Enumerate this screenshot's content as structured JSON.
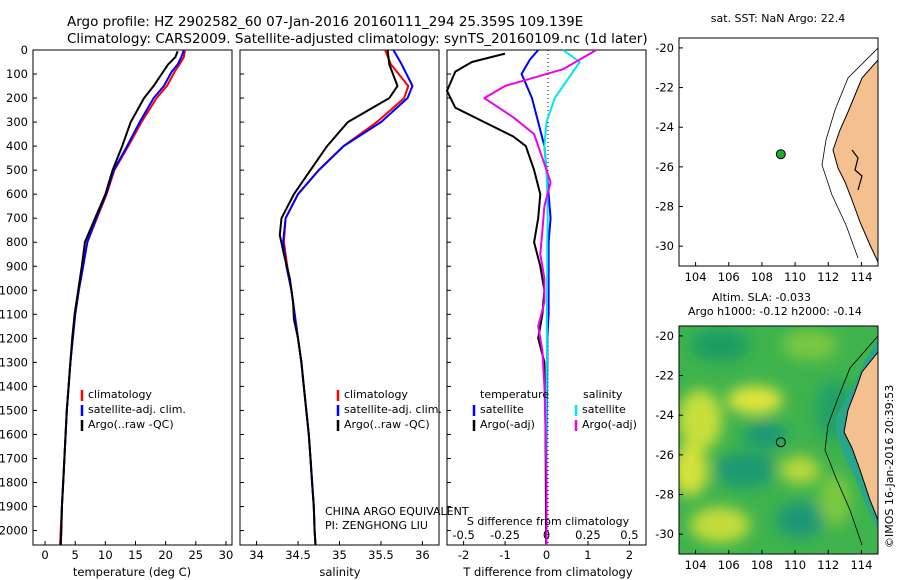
{
  "header": {
    "line1": "Argo profile: HZ 2902582_60 07-Jan-2016 20160111_294 25.359S 109.139E",
    "line2": "Climatology: CARS2009. Satellite-adjusted climatology: synTS_20160109.nc (1d later)"
  },
  "colors": {
    "climatology": "#ff0000",
    "satellite": "#0000ff",
    "argo": "#000000",
    "salinity_satellite": "#00e5ee",
    "salinity_argo": "#ee00ee",
    "land": "#f5c08f",
    "float_marker": "#22aa33"
  },
  "side_label": "©IMOS 16-Jan-2016 20:39:53",
  "chart_data": [
    {
      "id": "temperature",
      "type": "line",
      "xlabel": "temperature (deg C)",
      "ylabel": "",
      "xlim": [
        -2,
        31
      ],
      "ylim": [
        2060,
        0
      ],
      "xticks": [
        0,
        5,
        10,
        15,
        20,
        25,
        30
      ],
      "yticks": [
        0,
        100,
        200,
        300,
        400,
        500,
        600,
        700,
        800,
        900,
        1000,
        1100,
        1200,
        1300,
        1400,
        1500,
        1600,
        1700,
        1800,
        1900,
        2000
      ],
      "legend": [
        "climatology",
        "satellite-adj. clim.",
        "Argo(..raw -QC)"
      ],
      "series": [
        {
          "name": "climatology",
          "color": "#ff0000",
          "points": [
            [
              23.2,
              0
            ],
            [
              23.0,
              30
            ],
            [
              22.3,
              60
            ],
            [
              21.5,
              90
            ],
            [
              20.2,
              150
            ],
            [
              18.5,
              200
            ],
            [
              16.0,
              300
            ],
            [
              13.8,
              400
            ],
            [
              11.5,
              500
            ],
            [
              10.2,
              600
            ],
            [
              8.6,
              700
            ],
            [
              7.0,
              800
            ],
            [
              6.3,
              900
            ],
            [
              5.6,
              1000
            ],
            [
              5.0,
              1100
            ],
            [
              4.6,
              1200
            ],
            [
              4.2,
              1300
            ],
            [
              3.9,
              1400
            ],
            [
              3.6,
              1500
            ],
            [
              3.4,
              1600
            ],
            [
              3.2,
              1700
            ],
            [
              3.0,
              1800
            ],
            [
              2.8,
              1900
            ],
            [
              2.6,
              2000
            ],
            [
              2.5,
              2060
            ]
          ]
        },
        {
          "name": "satellite-adj. clim.",
          "color": "#0000ff",
          "points": [
            [
              23.0,
              0
            ],
            [
              22.6,
              30
            ],
            [
              22.0,
              60
            ],
            [
              21.0,
              90
            ],
            [
              19.7,
              150
            ],
            [
              18.0,
              200
            ],
            [
              15.7,
              300
            ],
            [
              13.6,
              400
            ],
            [
              11.4,
              500
            ],
            [
              10.1,
              600
            ],
            [
              8.5,
              700
            ],
            [
              7.0,
              800
            ],
            [
              6.3,
              900
            ],
            [
              5.6,
              1000
            ],
            [
              5.0,
              1100
            ],
            [
              4.6,
              1200
            ],
            [
              4.2,
              1300
            ],
            [
              3.9,
              1400
            ],
            [
              3.6,
              1500
            ],
            [
              3.4,
              1600
            ],
            [
              3.2,
              1700
            ],
            [
              3.0,
              1800
            ],
            [
              2.8,
              1900
            ],
            [
              2.7,
              2000
            ],
            [
              2.6,
              2060
            ]
          ]
        },
        {
          "name": "Argo(..raw -QC)",
          "color": "#000000",
          "points": [
            [
              22.0,
              5
            ],
            [
              21.6,
              30
            ],
            [
              20.4,
              60
            ],
            [
              19.6,
              90
            ],
            [
              18.0,
              150
            ],
            [
              16.4,
              200
            ],
            [
              14.2,
              300
            ],
            [
              12.8,
              400
            ],
            [
              11.2,
              500
            ],
            [
              10.0,
              600
            ],
            [
              8.3,
              700
            ],
            [
              6.6,
              800
            ],
            [
              6.1,
              900
            ],
            [
              5.5,
              1000
            ],
            [
              4.9,
              1100
            ],
            [
              4.5,
              1200
            ],
            [
              4.2,
              1300
            ],
            [
              3.9,
              1400
            ],
            [
              3.6,
              1500
            ],
            [
              3.4,
              1600
            ],
            [
              3.2,
              1700
            ],
            [
              3.0,
              1800
            ],
            [
              2.8,
              1900
            ],
            [
              2.7,
              2000
            ],
            [
              2.6,
              2060
            ]
          ]
        }
      ]
    },
    {
      "id": "salinity",
      "type": "line",
      "xlabel": "salinity",
      "xlim": [
        33.8,
        36.2
      ],
      "ylim": [
        2060,
        0
      ],
      "xticks": [
        34,
        34.5,
        35,
        35.5,
        36
      ],
      "legend": [
        "climatology",
        "satellite-adj. clim.",
        "Argo(..raw -QC)"
      ],
      "annotation": [
        "CHINA ARGO EQUIVALENT",
        "PI: ZENGHONG LIU"
      ],
      "series": [
        {
          "name": "climatology",
          "color": "#ff0000",
          "points": [
            [
              35.55,
              0
            ],
            [
              35.62,
              60
            ],
            [
              35.83,
              150
            ],
            [
              35.78,
              200
            ],
            [
              35.45,
              300
            ],
            [
              35.05,
              400
            ],
            [
              34.75,
              500
            ],
            [
              34.5,
              600
            ],
            [
              34.35,
              700
            ],
            [
              34.33,
              800
            ],
            [
              34.37,
              900
            ],
            [
              34.42,
              1000
            ],
            [
              34.46,
              1100
            ],
            [
              34.5,
              1200
            ],
            [
              34.54,
              1300
            ],
            [
              34.57,
              1400
            ],
            [
              34.6,
              1500
            ],
            [
              34.63,
              1600
            ],
            [
              34.65,
              1700
            ],
            [
              34.67,
              1800
            ],
            [
              34.69,
              1900
            ],
            [
              34.7,
              2000
            ],
            [
              34.71,
              2060
            ]
          ]
        },
        {
          "name": "satellite-adj. clim.",
          "color": "#0000ff",
          "points": [
            [
              35.65,
              0
            ],
            [
              35.75,
              60
            ],
            [
              35.88,
              150
            ],
            [
              35.82,
              200
            ],
            [
              35.5,
              300
            ],
            [
              35.05,
              400
            ],
            [
              34.75,
              500
            ],
            [
              34.5,
              600
            ],
            [
              34.35,
              700
            ],
            [
              34.32,
              800
            ],
            [
              34.36,
              900
            ],
            [
              34.42,
              1000
            ],
            [
              34.46,
              1100
            ],
            [
              34.5,
              1200
            ],
            [
              34.54,
              1300
            ],
            [
              34.57,
              1400
            ],
            [
              34.6,
              1500
            ],
            [
              34.63,
              1600
            ],
            [
              34.65,
              1700
            ],
            [
              34.67,
              1800
            ],
            [
              34.69,
              1900
            ],
            [
              34.7,
              2000
            ],
            [
              34.71,
              2060
            ]
          ]
        },
        {
          "name": "Argo(..raw -QC)",
          "color": "#000000",
          "points": [
            [
              35.58,
              0
            ],
            [
              35.6,
              60
            ],
            [
              35.7,
              150
            ],
            [
              35.6,
              200
            ],
            [
              35.1,
              300
            ],
            [
              34.85,
              400
            ],
            [
              34.65,
              500
            ],
            [
              34.45,
              600
            ],
            [
              34.3,
              700
            ],
            [
              34.28,
              770
            ],
            [
              34.33,
              850
            ],
            [
              34.4,
              950
            ],
            [
              34.44,
              1050
            ],
            [
              34.45,
              1120
            ],
            [
              34.5,
              1200
            ],
            [
              34.54,
              1300
            ],
            [
              34.57,
              1400
            ],
            [
              34.6,
              1500
            ],
            [
              34.63,
              1600
            ],
            [
              34.65,
              1700
            ],
            [
              34.67,
              1800
            ],
            [
              34.69,
              1900
            ],
            [
              34.7,
              2000
            ],
            [
              34.71,
              2060
            ]
          ]
        }
      ]
    },
    {
      "id": "difference",
      "type": "line",
      "xlabel": "T difference from climatology",
      "top_label": "S difference from climatology",
      "xlim": [
        -2.4,
        2.4
      ],
      "ylim": [
        2060,
        0
      ],
      "xticks": [
        -2,
        -1,
        0,
        1,
        2
      ],
      "top_xticks": [
        "-0.5",
        "-0.25",
        "0",
        "0.25",
        "0.5"
      ],
      "legend_t_title": "temperature",
      "legend_s_title": "salinity",
      "legend_t": [
        "satellite",
        "Argo(-adj)"
      ],
      "legend_s": [
        "satellite",
        "Argo(-adj)"
      ],
      "series": [
        {
          "name": "T satellite",
          "color": "#0000ff",
          "points": [
            [
              -0.2,
              0
            ],
            [
              -0.4,
              40
            ],
            [
              -0.6,
              100
            ],
            [
              -0.5,
              140
            ],
            [
              -0.35,
              200
            ],
            [
              -0.2,
              300
            ],
            [
              -0.05,
              400
            ],
            [
              0,
              500
            ],
            [
              0.05,
              600
            ],
            [
              0.1,
              700
            ],
            [
              0.05,
              800
            ],
            [
              0.05,
              900
            ],
            [
              0.05,
              1000
            ],
            [
              0.05,
              1100
            ],
            [
              0.02,
              1200
            ],
            [
              0.02,
              1300
            ],
            [
              0.01,
              1500
            ],
            [
              0,
              1700
            ],
            [
              0,
              2060
            ]
          ]
        },
        {
          "name": "T Argo(-adj)",
          "color": "#000000",
          "points": [
            [
              -1.0,
              15
            ],
            [
              -1.8,
              50
            ],
            [
              -2.2,
              90
            ],
            [
              -2.4,
              170
            ],
            [
              -2.2,
              240
            ],
            [
              -1.5,
              300
            ],
            [
              -0.8,
              360
            ],
            [
              -0.5,
              400
            ],
            [
              -0.3,
              500
            ],
            [
              -0.15,
              600
            ],
            [
              -0.2,
              700
            ],
            [
              -0.3,
              800
            ],
            [
              -0.15,
              900
            ],
            [
              -0.05,
              1000
            ],
            [
              -0.1,
              1100
            ],
            [
              -0.2,
              1200
            ],
            [
              -0.05,
              1300
            ],
            [
              -0.03,
              1500
            ],
            [
              -0.02,
              1700
            ],
            [
              -0.01,
              2060
            ]
          ]
        },
        {
          "name": "S satellite",
          "color": "#00e5ee",
          "points": [
            [
              0.4,
              0
            ],
            [
              0.8,
              50
            ],
            [
              0.6,
              100
            ],
            [
              0.2,
              200
            ],
            [
              0.0,
              300
            ],
            [
              -0.05,
              400
            ],
            [
              0,
              500
            ],
            [
              0.02,
              600
            ],
            [
              0.03,
              700
            ],
            [
              0.02,
              800
            ],
            [
              0.02,
              900
            ],
            [
              0.01,
              1100
            ],
            [
              0.01,
              1300
            ],
            [
              0,
              1500
            ],
            [
              0,
              2060
            ]
          ]
        },
        {
          "name": "S Argo(-adj)",
          "color": "#ee00ee",
          "points": [
            [
              1.2,
              0
            ],
            [
              0.4,
              80
            ],
            [
              -1.0,
              150
            ],
            [
              -1.5,
              200
            ],
            [
              -0.8,
              280
            ],
            [
              -0.3,
              350
            ],
            [
              -0.1,
              450
            ],
            [
              0.1,
              550
            ],
            [
              -0.05,
              650
            ],
            [
              -0.1,
              750
            ],
            [
              -0.15,
              850
            ],
            [
              -0.05,
              950
            ],
            [
              -0.05,
              1050
            ],
            [
              -0.2,
              1150
            ],
            [
              -0.1,
              1250
            ],
            [
              -0.05,
              1400
            ],
            [
              -0.02,
              1600
            ],
            [
              0,
              1800
            ],
            [
              0,
              2060
            ]
          ]
        }
      ]
    },
    {
      "id": "sst_map",
      "type": "map",
      "title": "sat. SST: NaN Argo: 22.4",
      "xlim": [
        103,
        115
      ],
      "ylim": [
        -31,
        -19.5
      ],
      "xticks": [
        104,
        106,
        108,
        110,
        112,
        114
      ],
      "yticks": [
        -20,
        -22,
        -24,
        -26,
        -28,
        -30
      ],
      "float": {
        "lon": 109.139,
        "lat": -25.359
      }
    },
    {
      "id": "sla_map",
      "type": "map",
      "title": "Altim. SLA: -0.033",
      "subtitle": "Argo h1000: -0.12 h2000: -0.14",
      "xlim": [
        103,
        115
      ],
      "ylim": [
        -31,
        -19.5
      ],
      "xticks": [
        104,
        106,
        108,
        110,
        112,
        114
      ],
      "yticks": [
        -20,
        -22,
        -24,
        -26,
        -28,
        -30
      ],
      "float": {
        "lon": 109.139,
        "lat": -25.359
      }
    }
  ]
}
